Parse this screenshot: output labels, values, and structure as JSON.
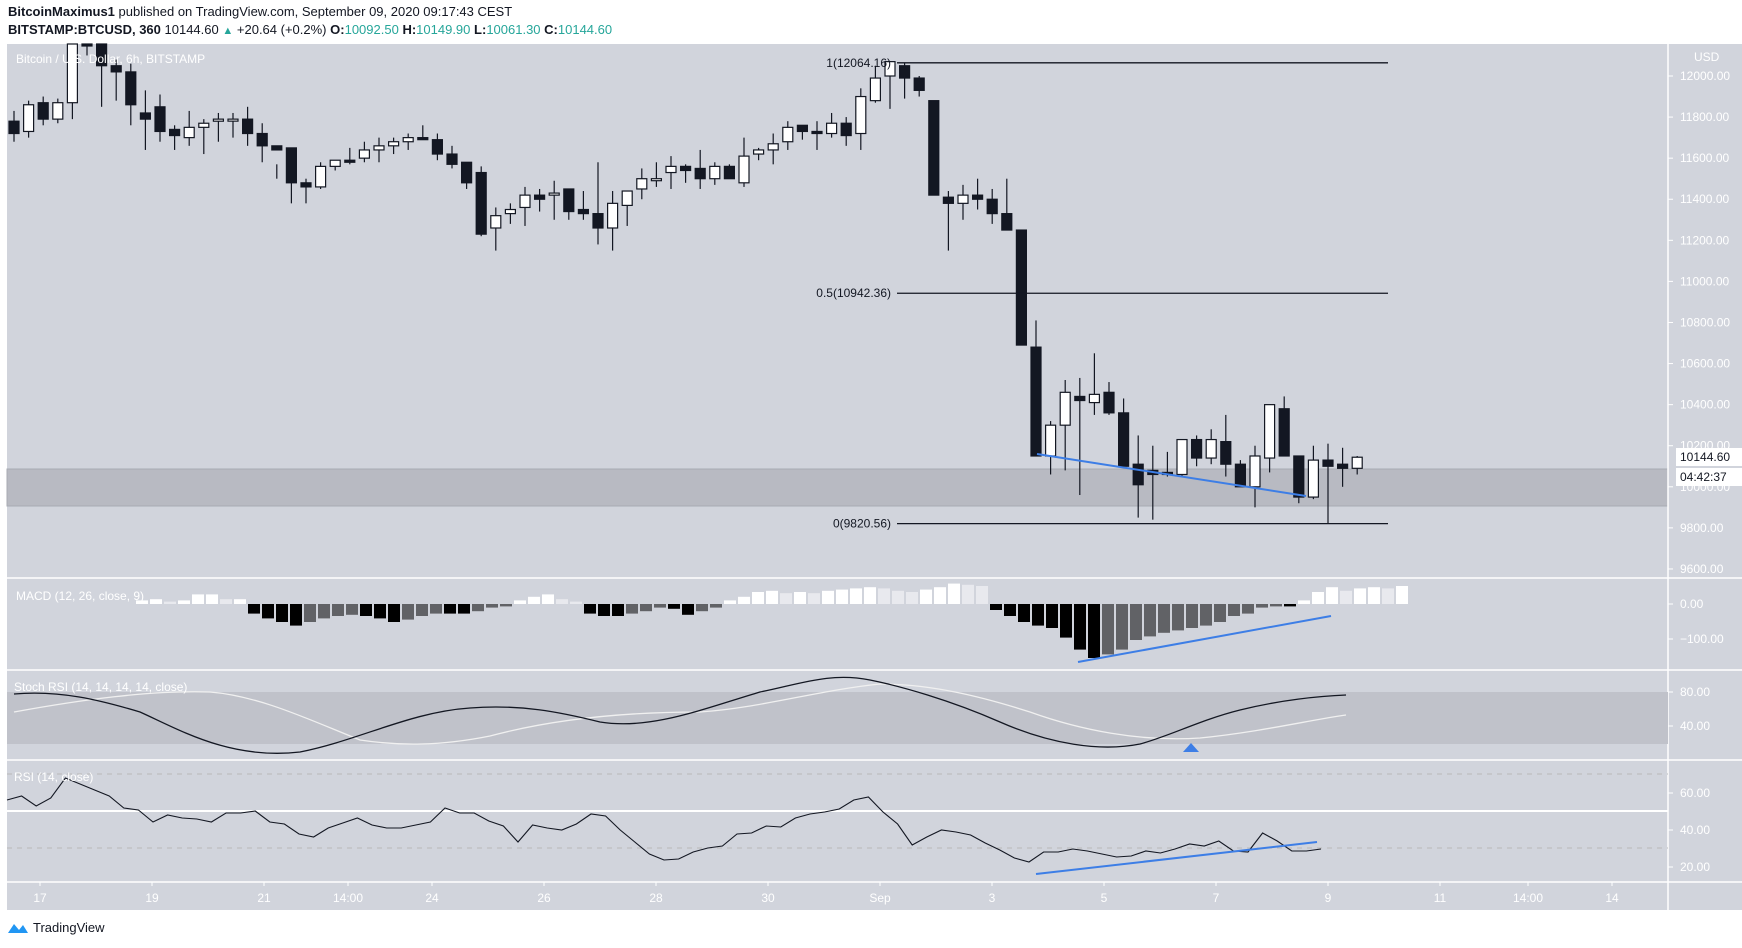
{
  "header": {
    "author": "BitcoinMaximus1",
    "published_text": "published on TradingView.com, September 09, 2020 09:17:43 CEST",
    "symbol": "BITSTAMP:BTCUSD, 360",
    "last_price": "10144.60",
    "change": "+20.64 (+0.2%)",
    "o_label": "O:",
    "o_value": "10092.50",
    "h_label": "H:",
    "h_value": "10149.90",
    "l_label": "L:",
    "l_value": "10061.30",
    "c_label": "C:",
    "c_value": "10144.60",
    "up_icon": "triangle-up-icon"
  },
  "main_pane": {
    "title": "Bitcoin / U.S. Dollar, 6h, BITSTAMP",
    "currency": "USD",
    "price_badge": "10144.60",
    "countdown_badge": "04:42:37"
  },
  "indicators": {
    "macd_title": "MACD (12, 26, close, 9)",
    "stoch_title": "Stoch RSI (14, 14, 14, 14, close)",
    "rsi_title": "RSI (14, close)"
  },
  "footer": {
    "brand": "TradingView",
    "logo_icon": "tradingview-logo-icon"
  },
  "colors": {
    "background": "#d1d4dc",
    "bear_candle": "#131722",
    "bull_candle": "#ffffff",
    "trendline": "#3d7ee6",
    "support_zone": "#b8bac2",
    "teal": "#26a69a"
  },
  "chart_data": [
    {
      "type": "candlestick",
      "title": "Bitcoin / U.S. Dollar, 6h, BITSTAMP",
      "xlabel": "",
      "ylabel": "USD",
      "ylim": [
        9550,
        12150
      ],
      "x_ticks": [
        "17",
        "19",
        "21",
        "14:00",
        "24",
        "26",
        "28",
        "30",
        "Sep",
        "3",
        "5",
        "7",
        "9",
        "11",
        "14:00",
        "14"
      ],
      "y_ticks": [
        12000,
        11800,
        11600,
        11400,
        11200,
        11000,
        10800,
        10600,
        10400,
        10200,
        10000,
        9800,
        9600
      ],
      "last_price": 10144.6,
      "fib_levels": [
        {
          "label": "1(12064.16)",
          "level": 1,
          "price": 12064.16
        },
        {
          "label": "0.5(10942.36)",
          "level": 0.5,
          "price": 10942.36
        },
        {
          "label": "0(9820.56)",
          "level": 0,
          "price": 9820.56
        }
      ],
      "support_zone": [
        9910,
        10070
      ],
      "annotations": [
        "descending blue trendline connecting lows ~10150 to ~9960"
      ]
    },
    {
      "type": "bar",
      "title": "MACD (12, 26, close, 9)",
      "y_ticks": [
        0.0,
        -100.0
      ],
      "annotations": [
        "rising blue trendline under histogram lows (bullish divergence)"
      ]
    },
    {
      "type": "line",
      "title": "Stoch RSI (14, 14, 14, 14, close)",
      "y_ticks": [
        80.0,
        40.0
      ],
      "band": [
        20,
        80
      ],
      "annotations": [
        "blue up-triangle at bullish crossover near Sep 6-7"
      ]
    },
    {
      "type": "line",
      "title": "RSI (14, close)",
      "y_ticks": [
        60.0,
        40.0,
        20.0
      ],
      "ylim": [
        10,
        80
      ],
      "annotations": [
        "rising blue trendline under RSI lows (bullish divergence)"
      ]
    }
  ],
  "axis": {
    "price_ticks": [
      "12000.00",
      "11800.00",
      "11600.00",
      "11400.00",
      "11200.00",
      "11000.00",
      "10800.00",
      "10600.00",
      "10400.00",
      "10200.00",
      "10000.00",
      "9800.00",
      "9600.00"
    ],
    "macd_ticks": [
      "0.00",
      "−100.00"
    ],
    "stoch_ticks": [
      "80.00",
      "40.00"
    ],
    "rsi_ticks": [
      "60.00",
      "40.00",
      "20.00"
    ],
    "time_ticks": [
      "17",
      "19",
      "21",
      "14:00",
      "24",
      "26",
      "28",
      "30",
      "Sep",
      "3",
      "5",
      "7",
      "9",
      "11",
      "14:00",
      "14"
    ]
  }
}
